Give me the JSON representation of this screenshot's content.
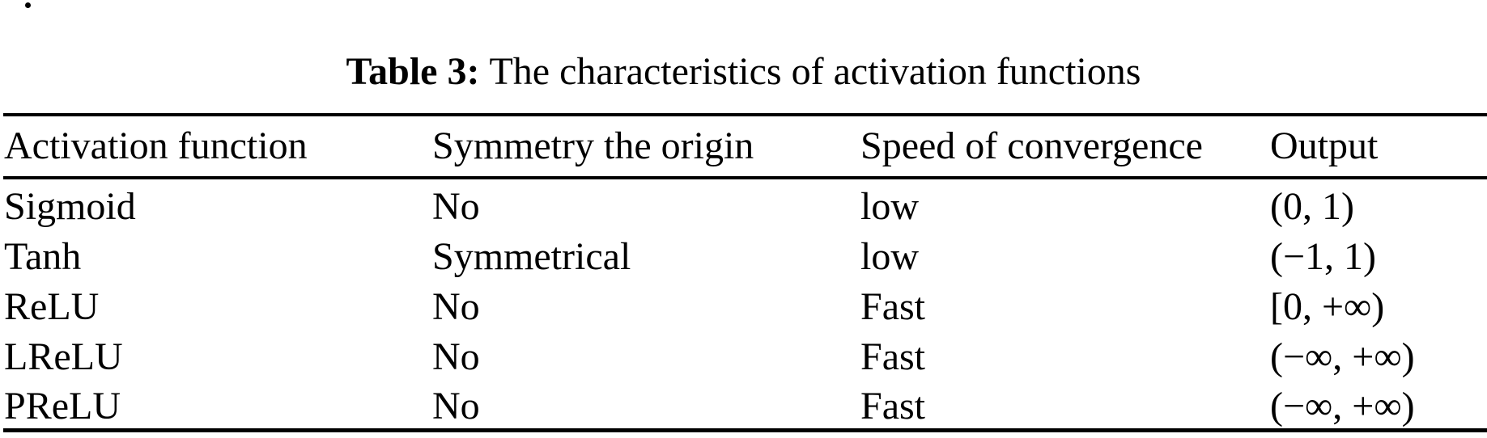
{
  "page": {
    "background": "#ffffff",
    "text_color": "#000000",
    "rule_color": "#000000",
    "stray_mark": "."
  },
  "caption": {
    "label": "Table 3:",
    "text": "The characteristics of activation functions"
  },
  "table": {
    "columns": [
      "Activation function",
      "Symmetry the origin",
      "Speed of convergence",
      "Output"
    ],
    "rows": [
      [
        "Sigmoid",
        "No",
        "low",
        "(0, 1)"
      ],
      [
        "Tanh",
        "Symmetrical",
        "low",
        "(−1, 1)"
      ],
      [
        "ReLU",
        "No",
        "Fast",
        "[0, +∞)"
      ],
      [
        "LReLU",
        "No",
        "Fast",
        "(−∞, +∞)"
      ],
      [
        "PReLU",
        "No",
        "Fast",
        "(−∞, +∞)"
      ]
    ]
  }
}
